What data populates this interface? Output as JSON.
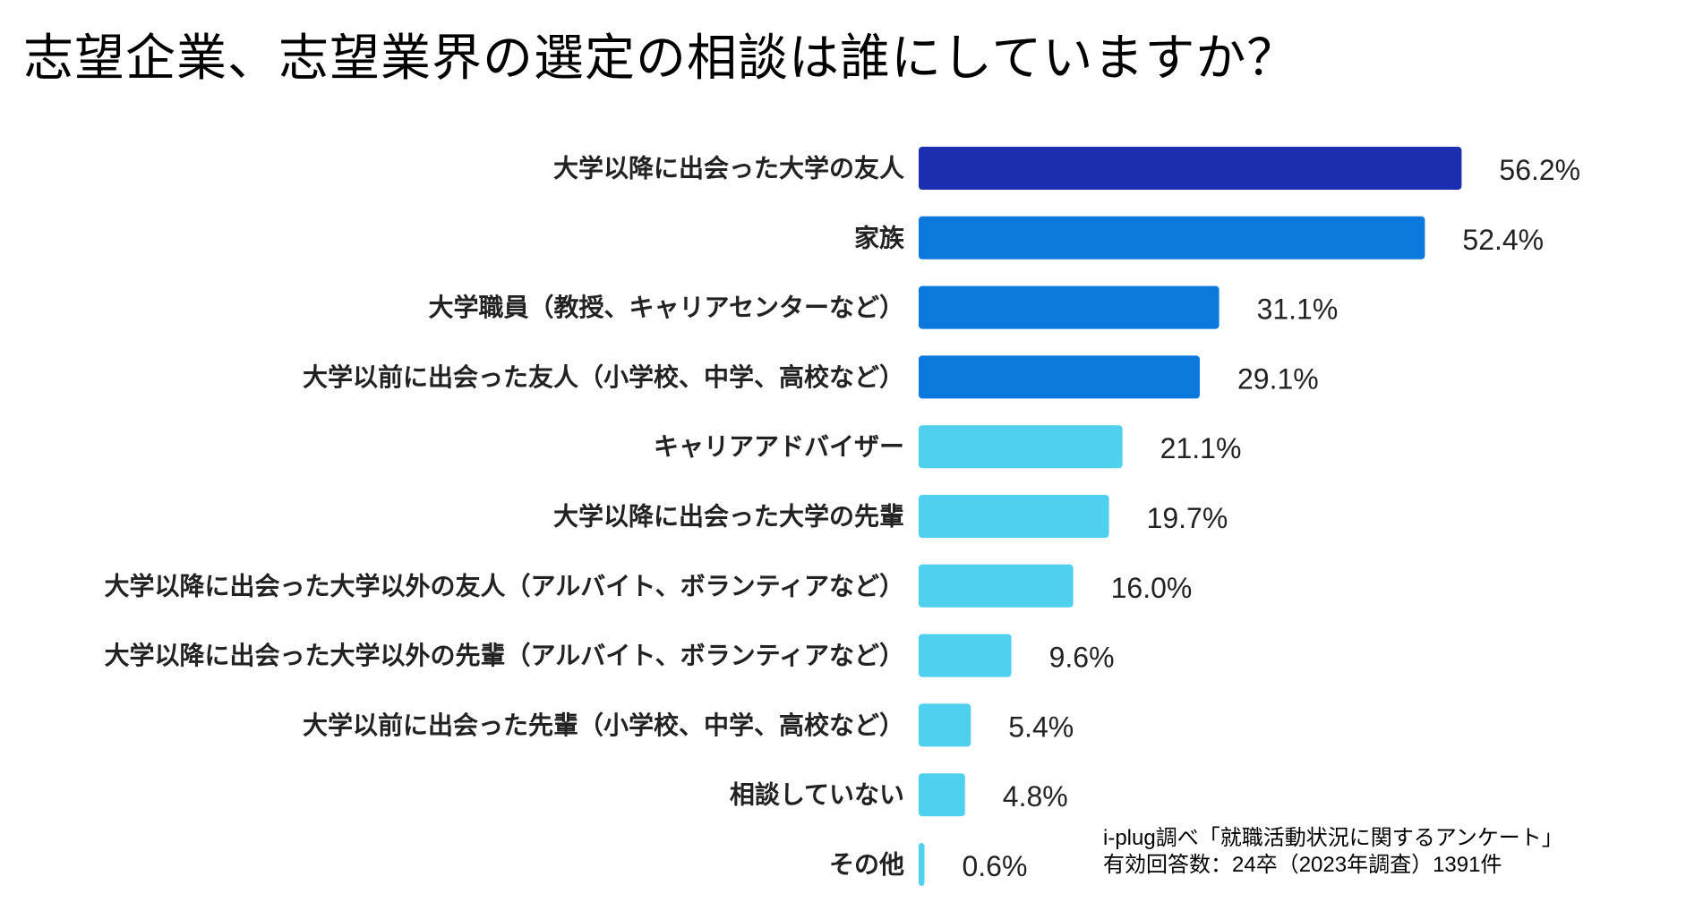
{
  "chart_data": {
    "type": "bar",
    "orientation": "horizontal",
    "title": "志望企業、志望業界の選定の相談は誰にしていますか？",
    "xlabel": "",
    "ylabel": "",
    "xlim": [
      0,
      60
    ],
    "grid": false,
    "value_suffix": "%",
    "categories": [
      "大学以降に出会った大学の友人",
      "家族",
      "大学職員（教授、キャリアセンターなど）",
      "大学以前に出会った友人（小学校、中学、高校など）",
      "キャリアアドバイザー",
      "大学以降に出会った大学の先輩",
      "大学以降に出会った大学以外の友人（アルバイト、ボランティアなど）",
      "大学以降に出会った大学以外の先輩（アルバイト、ボランティアなど）",
      "大学以前に出会った先輩（小学校、中学、高校など）",
      "相談していない",
      "その他"
    ],
    "values": [
      56.2,
      52.4,
      31.1,
      29.1,
      21.1,
      19.7,
      16.0,
      9.6,
      5.4,
      4.8,
      0.6
    ],
    "value_labels": [
      "56.2%",
      "52.4%",
      "31.1%",
      "29.1%",
      "21.1%",
      "19.7%",
      "16.0%",
      "9.6%",
      "5.4%",
      "4.8%",
      "0.6%"
    ],
    "colors": [
      "#1b2db0",
      "#0a78dc",
      "#0a78dc",
      "#0a78dc",
      "#4ed0ee",
      "#4ed0ee",
      "#4ed0ee",
      "#4ed0ee",
      "#4ed0ee",
      "#4ed0ee",
      "#4ed0ee"
    ]
  },
  "footnote": {
    "line1": "i-plug調べ「就職活動状況に関するアンケート」",
    "line2": "有効回答数：24卒（2023年調査）1391件"
  }
}
